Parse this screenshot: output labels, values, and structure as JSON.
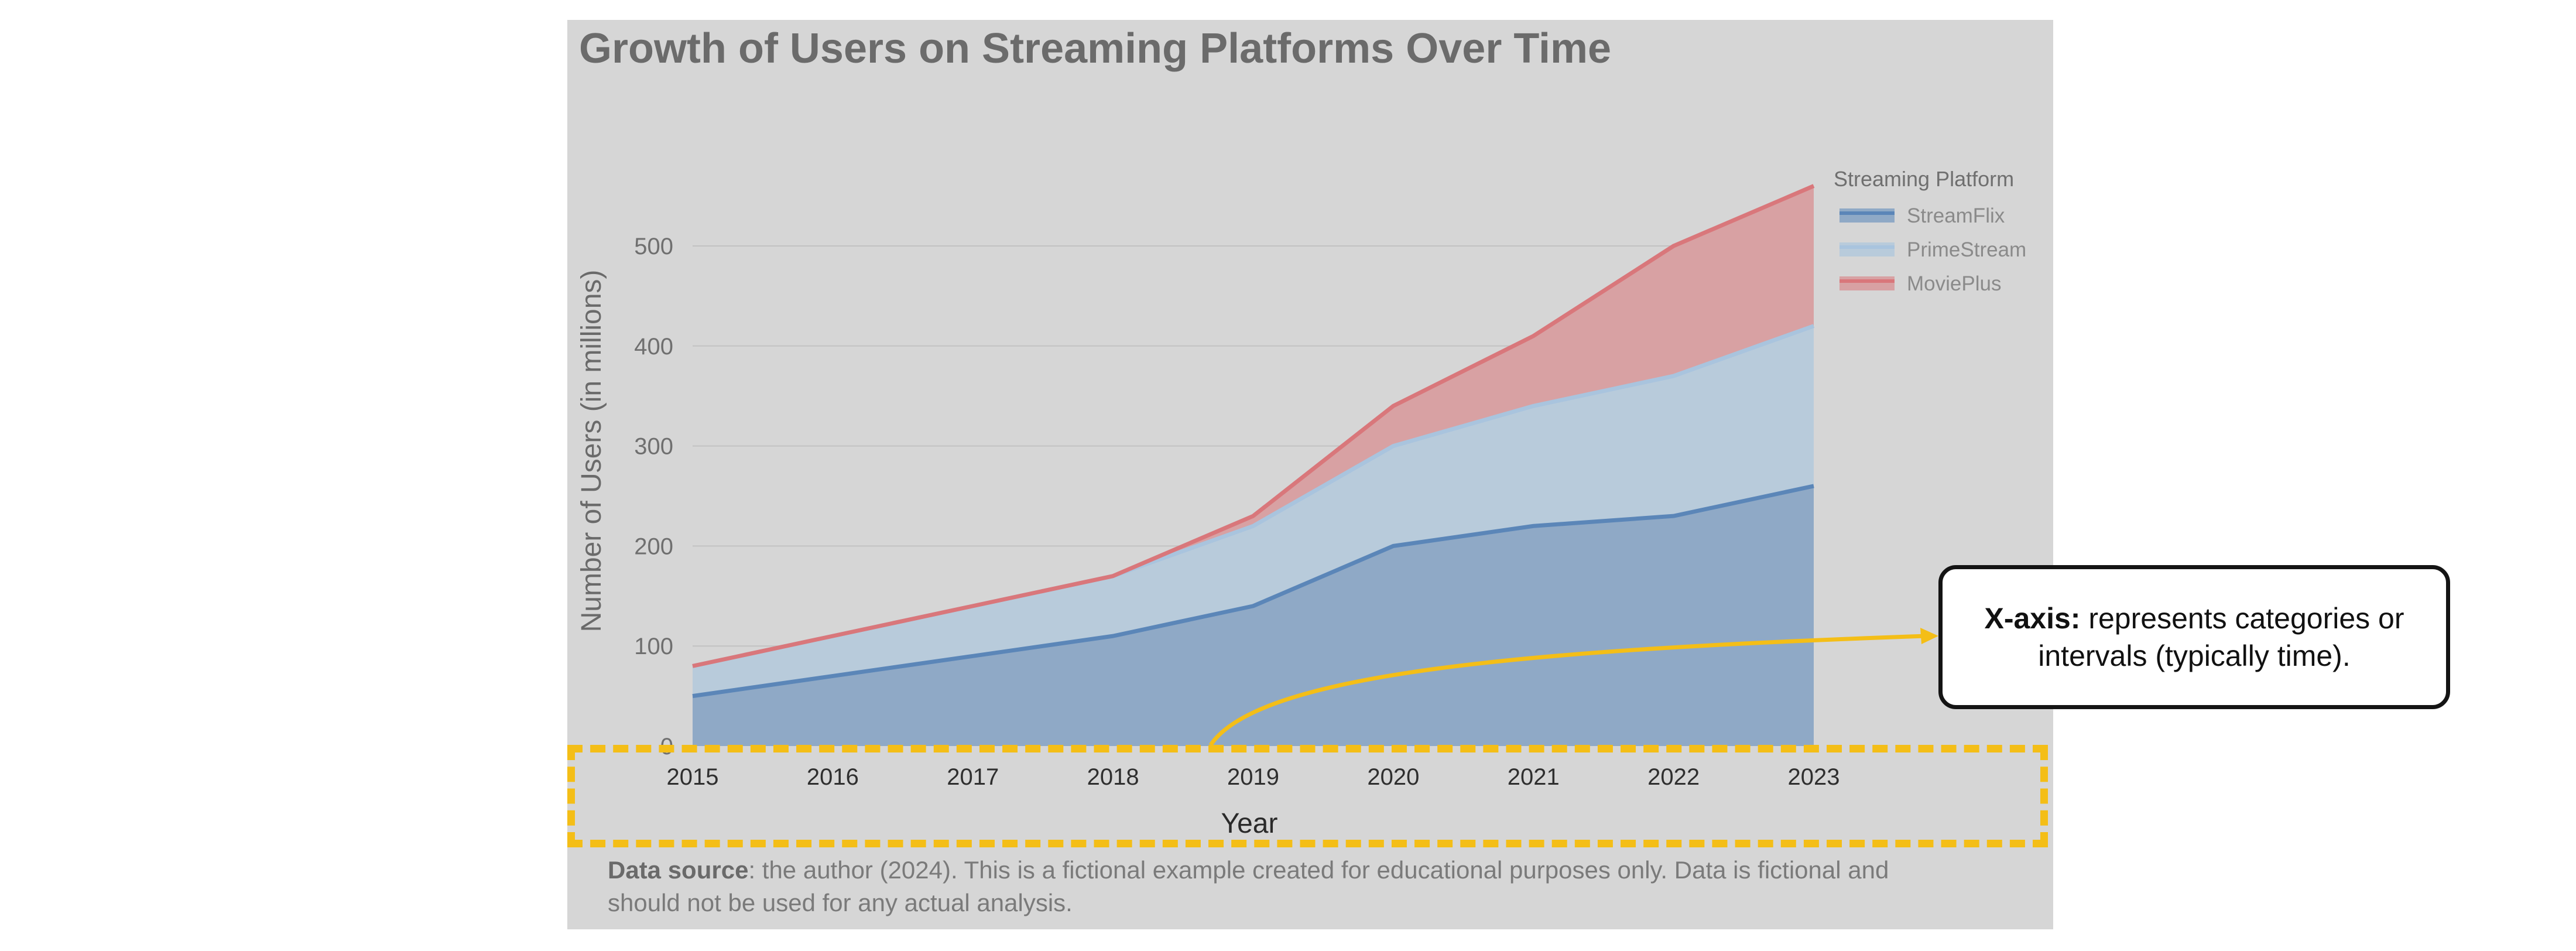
{
  "chart_data": {
    "type": "area",
    "stacked": true,
    "title": "Growth of Users on Streaming Platforms Over Time",
    "xlabel": "Year",
    "ylabel": "Number of Users (in millions)",
    "x": [
      2015,
      2016,
      2017,
      2018,
      2019,
      2020,
      2021,
      2022,
      2023
    ],
    "x_tick_labels": [
      "2015",
      "2016",
      "2017",
      "2018",
      "2019",
      "2020",
      "2021",
      "2022",
      "2023"
    ],
    "y_ticks": [
      0,
      100,
      200,
      300,
      400,
      500
    ],
    "ylim": [
      0,
      560
    ],
    "grid": true,
    "legend": {
      "title": "Streaming Platform",
      "position": "top-right"
    },
    "series": [
      {
        "name": "StreamFlix",
        "values": [
          50,
          70,
          90,
          110,
          140,
          200,
          220,
          230,
          260
        ],
        "color": "#5b86b8"
      },
      {
        "name": "PrimeStream",
        "values": [
          30,
          40,
          50,
          60,
          80,
          100,
          120,
          140,
          160
        ],
        "color": "#a9c4de"
      },
      {
        "name": "MoviePlus",
        "values": [
          0,
          0,
          0,
          0,
          10,
          40,
          70,
          130,
          140
        ],
        "color": "#d9777b"
      }
    ],
    "source_label": "Data source",
    "source_text": ": the author (2024). This is a fictional example created for educational purposes only. Data is fictional and should not be used for any actual analysis."
  },
  "annotation": {
    "callout_bold": "X-axis:",
    "callout_text": " represents categories or intervals (typically time).",
    "highlight_color": "#f4be17"
  }
}
